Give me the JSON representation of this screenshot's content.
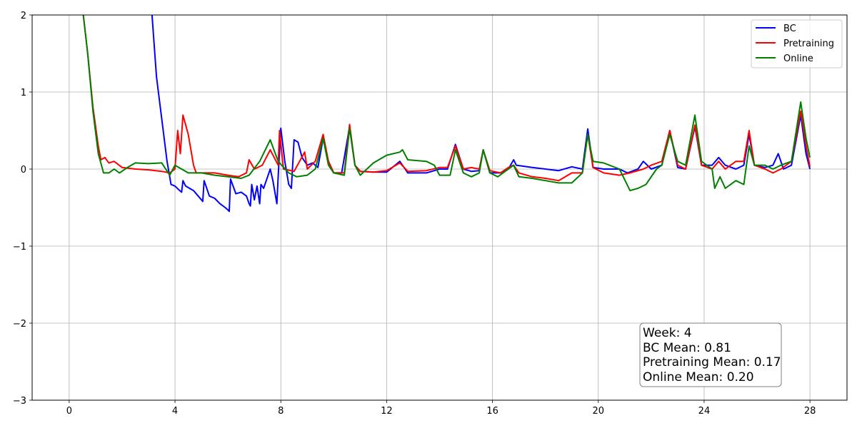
{
  "chart_data": {
    "type": "line",
    "title": "",
    "xlabel": "",
    "ylabel": "",
    "xlim": [
      -1.4,
      29.4
    ],
    "ylim": [
      -3,
      2
    ],
    "xticks": [
      0,
      4,
      8,
      12,
      16,
      20,
      24,
      28
    ],
    "yticks": [
      -3,
      -2,
      -1,
      0,
      1,
      2
    ],
    "xtick_labels": [
      "0",
      "4",
      "8",
      "12",
      "16",
      "20",
      "24",
      "28"
    ],
    "ytick_labels": [
      "−3",
      "−2",
      "−1",
      "0",
      "1",
      "2"
    ],
    "grid": true,
    "legend_position": "top-right",
    "series": [
      {
        "name": "BC",
        "color": "#0000ff",
        "points": [
          [
            3.1,
            2.15
          ],
          [
            3.3,
            1.2
          ],
          [
            3.5,
            0.65
          ],
          [
            3.7,
            0.1
          ],
          [
            3.85,
            -0.2
          ],
          [
            4.0,
            -0.22
          ],
          [
            4.15,
            -0.27
          ],
          [
            4.25,
            -0.3
          ],
          [
            4.3,
            -0.15
          ],
          [
            4.4,
            -0.22
          ],
          [
            4.7,
            -0.28
          ],
          [
            5.0,
            -0.4
          ],
          [
            5.05,
            -0.42
          ],
          [
            5.1,
            -0.15
          ],
          [
            5.3,
            -0.35
          ],
          [
            5.5,
            -0.38
          ],
          [
            5.7,
            -0.45
          ],
          [
            5.9,
            -0.5
          ],
          [
            6.0,
            -0.53
          ],
          [
            6.05,
            -0.55
          ],
          [
            6.1,
            -0.13
          ],
          [
            6.3,
            -0.32
          ],
          [
            6.5,
            -0.3
          ],
          [
            6.7,
            -0.35
          ],
          [
            6.8,
            -0.45
          ],
          [
            6.85,
            -0.48
          ],
          [
            6.9,
            -0.2
          ],
          [
            7.0,
            -0.4
          ],
          [
            7.1,
            -0.22
          ],
          [
            7.2,
            -0.45
          ],
          [
            7.25,
            -0.2
          ],
          [
            7.35,
            -0.25
          ],
          [
            7.5,
            -0.1
          ],
          [
            7.6,
            0.0
          ],
          [
            7.7,
            -0.15
          ],
          [
            7.85,
            -0.45
          ],
          [
            7.9,
            -0.1
          ],
          [
            8.0,
            0.53
          ],
          [
            8.15,
            0.1
          ],
          [
            8.3,
            -0.2
          ],
          [
            8.4,
            -0.25
          ],
          [
            8.5,
            0.38
          ],
          [
            8.65,
            0.35
          ],
          [
            8.8,
            0.15
          ],
          [
            9.0,
            0.05
          ],
          [
            9.2,
            0.08
          ],
          [
            9.4,
            0.02
          ],
          [
            9.6,
            0.4
          ],
          [
            9.8,
            0.1
          ],
          [
            10.0,
            -0.05
          ],
          [
            10.3,
            -0.05
          ],
          [
            10.6,
            0.55
          ],
          [
            10.8,
            0.05
          ],
          [
            11.0,
            -0.03
          ],
          [
            11.5,
            -0.04
          ],
          [
            12.0,
            -0.04
          ],
          [
            12.5,
            0.1
          ],
          [
            12.8,
            -0.05
          ],
          [
            13.5,
            -0.05
          ],
          [
            14.0,
            0.0
          ],
          [
            14.3,
            0.0
          ],
          [
            14.6,
            0.32
          ],
          [
            14.9,
            0.0
          ],
          [
            15.2,
            -0.03
          ],
          [
            15.5,
            -0.02
          ],
          [
            15.65,
            0.25
          ],
          [
            15.9,
            -0.05
          ],
          [
            16.3,
            -0.05
          ],
          [
            16.6,
            0.0
          ],
          [
            16.8,
            0.12
          ],
          [
            16.9,
            0.05
          ],
          [
            17.5,
            0.02
          ],
          [
            18.0,
            0.0
          ],
          [
            18.5,
            -0.02
          ],
          [
            19.0,
            0.03
          ],
          [
            19.4,
            0.0
          ],
          [
            19.6,
            0.52
          ],
          [
            19.8,
            0.02
          ],
          [
            20.2,
            0.0
          ],
          [
            20.8,
            0.0
          ],
          [
            21.1,
            -0.05
          ],
          [
            21.5,
            0.0
          ],
          [
            21.7,
            0.1
          ],
          [
            22.0,
            0.0
          ],
          [
            22.4,
            0.05
          ],
          [
            22.7,
            0.5
          ],
          [
            23.0,
            0.02
          ],
          [
            23.3,
            0.0
          ],
          [
            23.65,
            0.55
          ],
          [
            23.9,
            0.05
          ],
          [
            24.3,
            0.05
          ],
          [
            24.55,
            0.15
          ],
          [
            24.8,
            0.05
          ],
          [
            25.2,
            0.0
          ],
          [
            25.5,
            0.05
          ],
          [
            25.7,
            0.45
          ],
          [
            25.9,
            0.05
          ],
          [
            26.3,
            0.02
          ],
          [
            26.6,
            0.05
          ],
          [
            26.8,
            0.2
          ],
          [
            27.0,
            0.0
          ],
          [
            27.3,
            0.05
          ],
          [
            27.65,
            0.7
          ],
          [
            27.85,
            0.2
          ],
          [
            28.0,
            0.0
          ]
        ]
      },
      {
        "name": "Pretraining",
        "color": "#ff0000",
        "points": [
          [
            0.5,
            2.1
          ],
          [
            0.7,
            1.5
          ],
          [
            0.9,
            0.8
          ],
          [
            1.1,
            0.3
          ],
          [
            1.2,
            0.12
          ],
          [
            1.35,
            0.15
          ],
          [
            1.5,
            0.08
          ],
          [
            1.7,
            0.1
          ],
          [
            2.0,
            0.02
          ],
          [
            2.5,
            0.0
          ],
          [
            3.0,
            -0.01
          ],
          [
            3.5,
            -0.03
          ],
          [
            3.8,
            -0.05
          ],
          [
            4.0,
            0.0
          ],
          [
            4.1,
            0.5
          ],
          [
            4.2,
            0.2
          ],
          [
            4.3,
            0.7
          ],
          [
            4.5,
            0.45
          ],
          [
            4.7,
            0.05
          ],
          [
            4.8,
            -0.05
          ],
          [
            5.5,
            -0.05
          ],
          [
            6.0,
            -0.08
          ],
          [
            6.4,
            -0.1
          ],
          [
            6.7,
            -0.05
          ],
          [
            6.8,
            0.12
          ],
          [
            7.0,
            0.0
          ],
          [
            7.3,
            0.05
          ],
          [
            7.6,
            0.25
          ],
          [
            7.9,
            0.05
          ],
          [
            7.95,
            0.5
          ],
          [
            8.1,
            0.0
          ],
          [
            8.5,
            -0.03
          ],
          [
            8.9,
            0.22
          ],
          [
            9.0,
            0.0
          ],
          [
            9.3,
            0.1
          ],
          [
            9.6,
            0.45
          ],
          [
            9.8,
            0.1
          ],
          [
            10.0,
            -0.05
          ],
          [
            10.4,
            -0.05
          ],
          [
            10.6,
            0.58
          ],
          [
            10.8,
            0.05
          ],
          [
            11.0,
            -0.03
          ],
          [
            11.5,
            -0.04
          ],
          [
            12.0,
            -0.02
          ],
          [
            12.5,
            0.08
          ],
          [
            12.8,
            -0.03
          ],
          [
            13.5,
            -0.02
          ],
          [
            14.0,
            0.02
          ],
          [
            14.3,
            0.02
          ],
          [
            14.6,
            0.3
          ],
          [
            14.9,
            0.0
          ],
          [
            15.2,
            0.02
          ],
          [
            15.5,
            0.0
          ],
          [
            15.65,
            0.25
          ],
          [
            15.9,
            -0.02
          ],
          [
            16.3,
            -0.05
          ],
          [
            16.6,
            0.02
          ],
          [
            16.8,
            0.05
          ],
          [
            17.0,
            -0.05
          ],
          [
            17.5,
            -0.1
          ],
          [
            18.0,
            -0.12
          ],
          [
            18.5,
            -0.15
          ],
          [
            19.0,
            -0.05
          ],
          [
            19.4,
            -0.05
          ],
          [
            19.6,
            0.45
          ],
          [
            19.8,
            0.02
          ],
          [
            20.2,
            -0.05
          ],
          [
            20.8,
            -0.08
          ],
          [
            21.2,
            -0.05
          ],
          [
            21.7,
            0.0
          ],
          [
            22.0,
            0.05
          ],
          [
            22.4,
            0.1
          ],
          [
            22.7,
            0.5
          ],
          [
            23.0,
            0.05
          ],
          [
            23.3,
            0.0
          ],
          [
            23.65,
            0.57
          ],
          [
            23.9,
            0.05
          ],
          [
            24.3,
            0.0
          ],
          [
            24.55,
            0.1
          ],
          [
            24.8,
            0.0
          ],
          [
            25.2,
            0.1
          ],
          [
            25.5,
            0.1
          ],
          [
            25.7,
            0.5
          ],
          [
            25.9,
            0.05
          ],
          [
            26.3,
            0.0
          ],
          [
            26.6,
            -0.05
          ],
          [
            26.9,
            0.0
          ],
          [
            27.3,
            0.1
          ],
          [
            27.65,
            0.75
          ],
          [
            27.85,
            0.3
          ],
          [
            28.0,
            0.03
          ]
        ]
      },
      {
        "name": "Online",
        "color": "#008000",
        "points": [
          [
            0.5,
            2.1
          ],
          [
            0.7,
            1.5
          ],
          [
            0.9,
            0.75
          ],
          [
            1.1,
            0.2
          ],
          [
            1.3,
            -0.05
          ],
          [
            1.5,
            -0.05
          ],
          [
            1.7,
            0.0
          ],
          [
            1.9,
            -0.05
          ],
          [
            2.2,
            0.02
          ],
          [
            2.5,
            0.08
          ],
          [
            3.0,
            0.07
          ],
          [
            3.5,
            0.08
          ],
          [
            3.8,
            -0.08
          ],
          [
            4.0,
            0.05
          ],
          [
            4.5,
            -0.05
          ],
          [
            5.0,
            -0.05
          ],
          [
            5.5,
            -0.08
          ],
          [
            6.0,
            -0.1
          ],
          [
            6.5,
            -0.12
          ],
          [
            6.8,
            -0.08
          ],
          [
            7.2,
            0.1
          ],
          [
            7.6,
            0.38
          ],
          [
            7.9,
            0.1
          ],
          [
            8.3,
            -0.05
          ],
          [
            8.6,
            -0.1
          ],
          [
            9.0,
            -0.08
          ],
          [
            9.3,
            0.0
          ],
          [
            9.6,
            0.4
          ],
          [
            9.8,
            0.05
          ],
          [
            10.0,
            -0.05
          ],
          [
            10.4,
            -0.08
          ],
          [
            10.6,
            0.53
          ],
          [
            10.8,
            0.05
          ],
          [
            11.0,
            -0.08
          ],
          [
            11.5,
            0.08
          ],
          [
            12.0,
            0.18
          ],
          [
            12.5,
            0.22
          ],
          [
            12.6,
            0.25
          ],
          [
            12.8,
            0.12
          ],
          [
            13.5,
            0.1
          ],
          [
            13.8,
            0.05
          ],
          [
            14.0,
            -0.08
          ],
          [
            14.4,
            -0.08
          ],
          [
            14.6,
            0.25
          ],
          [
            14.9,
            -0.05
          ],
          [
            15.2,
            -0.1
          ],
          [
            15.5,
            -0.05
          ],
          [
            15.65,
            0.25
          ],
          [
            15.9,
            -0.05
          ],
          [
            16.2,
            -0.1
          ],
          [
            16.6,
            0.0
          ],
          [
            16.8,
            0.05
          ],
          [
            17.0,
            -0.1
          ],
          [
            17.5,
            -0.12
          ],
          [
            18.0,
            -0.15
          ],
          [
            18.5,
            -0.18
          ],
          [
            19.0,
            -0.18
          ],
          [
            19.4,
            -0.05
          ],
          [
            19.6,
            0.45
          ],
          [
            19.8,
            0.1
          ],
          [
            20.2,
            0.08
          ],
          [
            20.8,
            0.0
          ],
          [
            21.2,
            -0.28
          ],
          [
            21.5,
            -0.25
          ],
          [
            21.8,
            -0.2
          ],
          [
            22.2,
            0.0
          ],
          [
            22.4,
            0.05
          ],
          [
            22.7,
            0.45
          ],
          [
            23.0,
            0.1
          ],
          [
            23.3,
            0.05
          ],
          [
            23.65,
            0.7
          ],
          [
            23.9,
            0.1
          ],
          [
            24.3,
            0.0
          ],
          [
            24.4,
            -0.25
          ],
          [
            24.6,
            -0.1
          ],
          [
            24.8,
            -0.25
          ],
          [
            25.2,
            -0.15
          ],
          [
            25.5,
            -0.2
          ],
          [
            25.7,
            0.3
          ],
          [
            25.9,
            0.05
          ],
          [
            26.3,
            0.05
          ],
          [
            26.6,
            0.0
          ],
          [
            26.9,
            0.05
          ],
          [
            27.3,
            0.1
          ],
          [
            27.65,
            0.87
          ],
          [
            27.85,
            0.4
          ],
          [
            28.0,
            0.15
          ]
        ]
      }
    ]
  },
  "annotation": {
    "lines": [
      "Week: 4",
      "BC Mean: 0.81",
      "Pretraining Mean: 0.17",
      "Online Mean: 0.20"
    ]
  }
}
